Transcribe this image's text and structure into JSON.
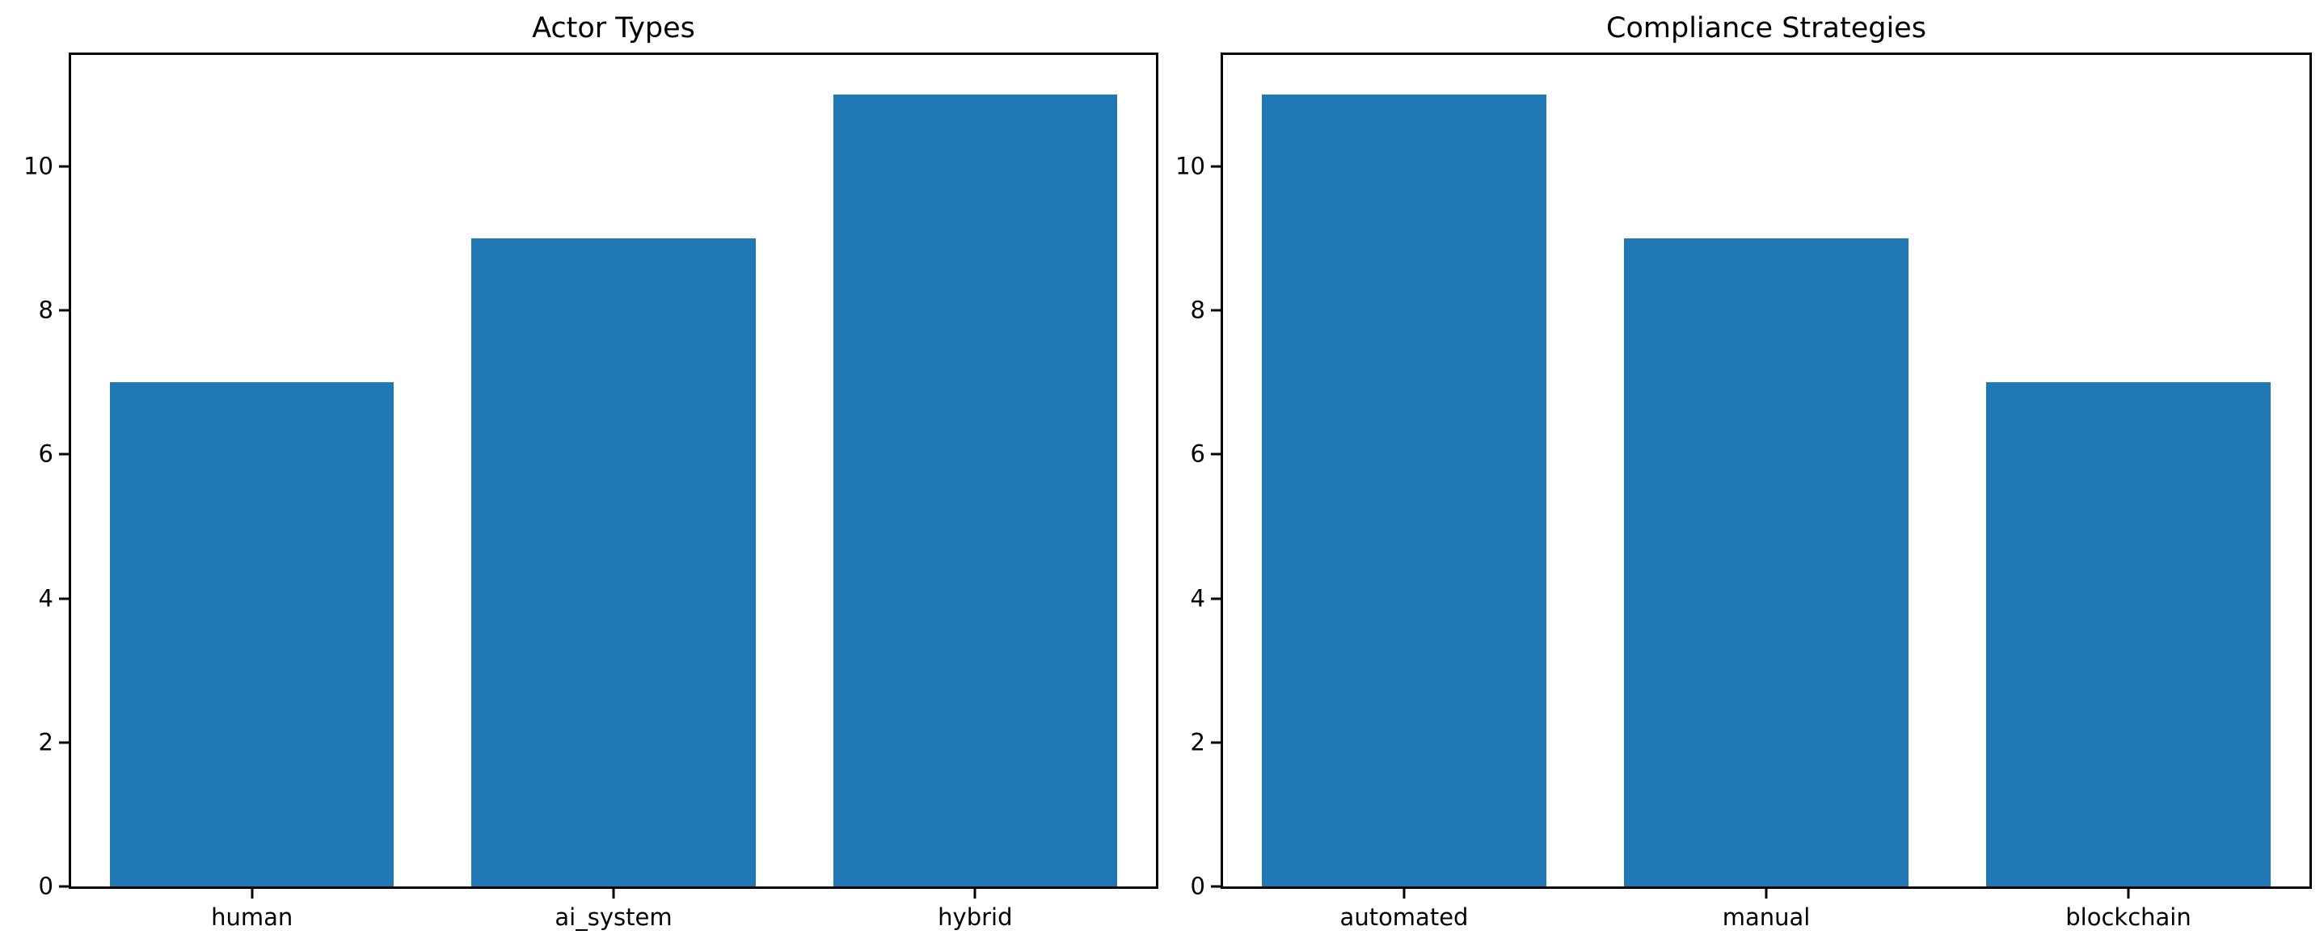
{
  "figure": {
    "background_color": "#ffffff",
    "bar_color": "#1f77b4",
    "axis_color": "#000000",
    "text_color": "#000000"
  },
  "chart_data": [
    {
      "type": "bar",
      "title": "Actor Types",
      "categories": [
        "human",
        "ai_system",
        "hybrid"
      ],
      "values": [
        7,
        9,
        11
      ],
      "xlabel": "",
      "ylabel": "",
      "yticks": [
        0,
        2,
        4,
        6,
        8,
        10
      ],
      "ylim": [
        0,
        11.55
      ],
      "bar_width_fraction": 0.785,
      "grid": false,
      "legend_position": "none",
      "bar_color": "#1f77b4"
    },
    {
      "type": "bar",
      "title": "Compliance Strategies",
      "categories": [
        "automated",
        "manual",
        "blockchain"
      ],
      "values": [
        11,
        9,
        7
      ],
      "xlabel": "",
      "ylabel": "",
      "yticks": [
        0,
        2,
        4,
        6,
        8,
        10
      ],
      "ylim": [
        0,
        11.55
      ],
      "bar_width_fraction": 0.785,
      "grid": false,
      "legend_position": "none",
      "bar_color": "#1f77b4"
    }
  ]
}
